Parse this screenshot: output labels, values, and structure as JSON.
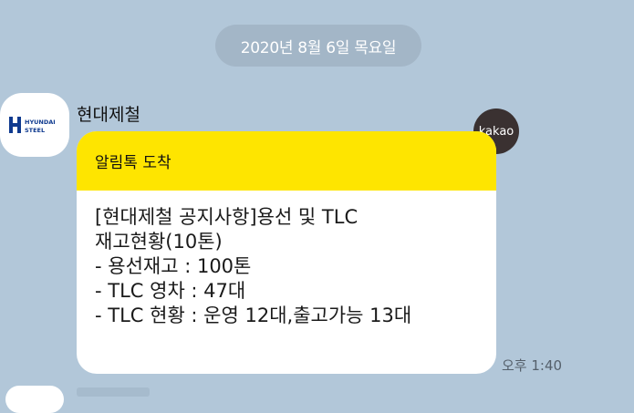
{
  "date_divider": "2020년 8월 6일 목요일",
  "message": {
    "sender": "현대제철",
    "logo_text_1": "HYUNDAI",
    "logo_text_2": "STEEL",
    "badge": "kakao",
    "header": "알림톡 도착",
    "lines": [
      "[현대제철 공지사항]용선 및 TLC",
      "재고현황(10톤)",
      "- 용선재고 : 100톤",
      "- TLC 영차 : 47대",
      "- TLC 현황 : 운영 12대,출고가능 13대"
    ],
    "time": "오후 1:40"
  },
  "colors": {
    "background": "#b2c7d9",
    "header_yellow": "#fee500",
    "logo_blue": "#0f3a8f",
    "badge_dark": "#3a3131"
  }
}
